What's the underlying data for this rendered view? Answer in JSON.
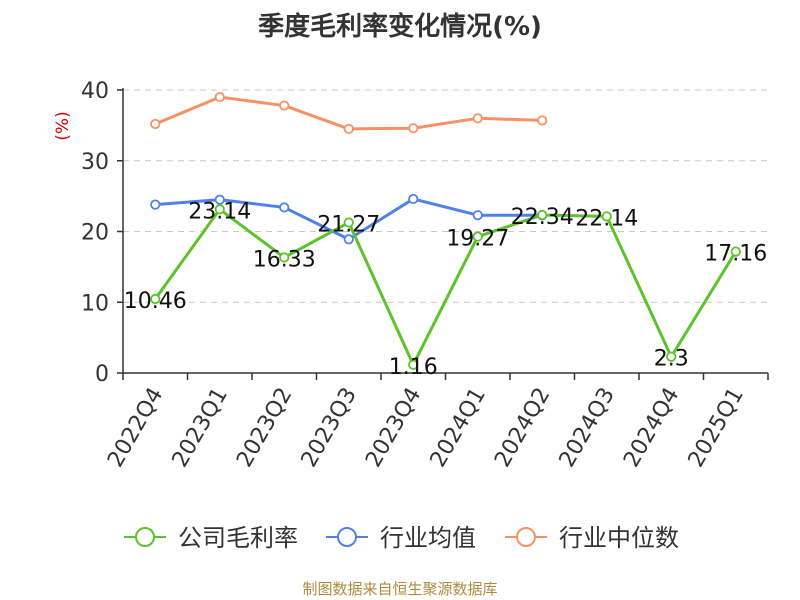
{
  "title": "季度毛利率变化情况(%)",
  "source": "制图数据来自恒生聚源数据库",
  "colors": {
    "company": "#5ec22a",
    "industry_avg": "#4f81e6",
    "industry_median": "#f79163",
    "unit_label": "#cc0000",
    "source": "#b08a3a"
  },
  "chart_data": {
    "type": "line",
    "title": "季度毛利率变化情况(%)",
    "ylabel": "(%)",
    "xlabel": "",
    "ylim": [
      0,
      40
    ],
    "yticks": [
      0,
      10,
      20,
      30,
      40
    ],
    "grid": true,
    "legend_position": "bottom",
    "categories": [
      "2022Q4",
      "2023Q1",
      "2023Q2",
      "2023Q3",
      "2023Q4",
      "2024Q1",
      "2024Q2",
      "2024Q3",
      "2024Q4",
      "2025Q1"
    ],
    "series": [
      {
        "name": "公司毛利率",
        "color_key": "company",
        "values": [
          10.46,
          23.14,
          16.33,
          21.27,
          1.16,
          19.27,
          22.34,
          22.14,
          2.3,
          17.16
        ],
        "labels": [
          "10.46",
          "23.14",
          "16.33",
          "21.27",
          "1.16",
          "19.27",
          "22.34",
          "22.14",
          "2.3",
          "17.16"
        ]
      },
      {
        "name": "行业均值",
        "color_key": "industry_avg",
        "values": [
          23.8,
          24.5,
          23.4,
          18.9,
          24.6,
          22.3,
          22.3,
          null,
          null,
          null
        ]
      },
      {
        "name": "行业中位数",
        "color_key": "industry_median",
        "values": [
          35.2,
          39.0,
          37.8,
          34.5,
          34.6,
          36.0,
          35.7,
          null,
          null,
          null
        ]
      }
    ]
  }
}
